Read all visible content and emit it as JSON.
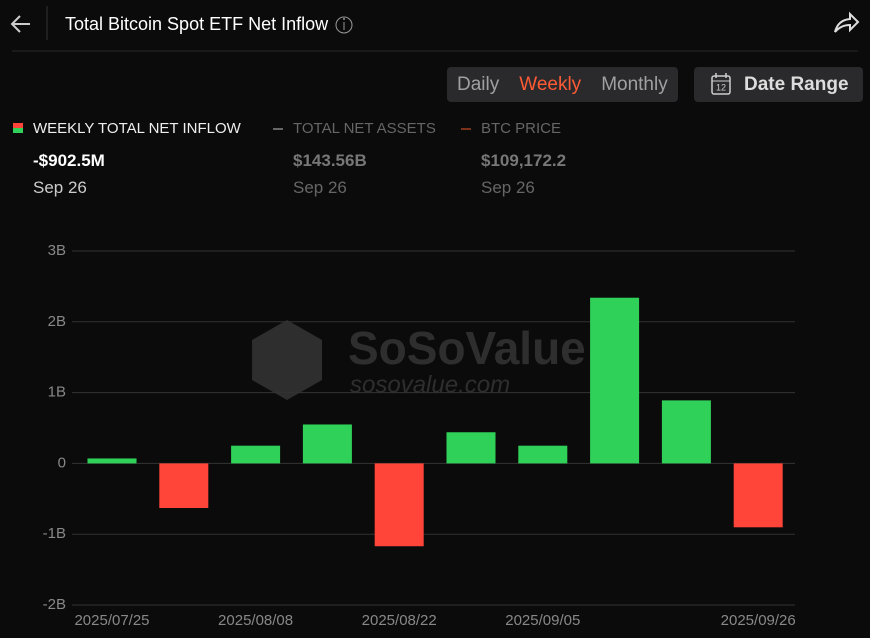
{
  "header": {
    "title": "Total Bitcoin Spot ETF Net Inflow"
  },
  "controls": {
    "tabs": [
      "Daily",
      "Weekly",
      "Monthly"
    ],
    "active_tab": 1,
    "date_range": "Date Range",
    "calendar_day": "12"
  },
  "legend": [
    {
      "label": "WEEKLY TOTAL NET INFLOW",
      "value": "-$902.5M",
      "date": "Sep 26"
    },
    {
      "label": "TOTAL NET ASSETS",
      "value": "$143.56B",
      "date": "Sep 26"
    },
    {
      "label": "BTC PRICE",
      "value": "$109,172.2",
      "date": "Sep 26"
    }
  ],
  "watermark": {
    "brand": "SoSoValue",
    "site": "sosovalue.com"
  },
  "chart_data": {
    "type": "bar",
    "categories": [
      "2025/07/25",
      null,
      "2025/08/08",
      null,
      "2025/08/22",
      null,
      "2025/09/05",
      null,
      null,
      "2025/09/26"
    ],
    "values": [
      0.07,
      -0.63,
      0.25,
      0.55,
      -1.17,
      0.44,
      0.25,
      2.34,
      0.89,
      -0.9025
    ],
    "positive_color": "#30d158",
    "negative_color": "#ff453a",
    "ylim": [
      -2,
      3
    ],
    "yticks": [
      {
        "value": -2,
        "label": "-2B"
      },
      {
        "value": -1,
        "label": "-1B"
      },
      0,
      {
        "value": 1,
        "label": "1B"
      },
      {
        "value": 2,
        "label": "2B"
      },
      {
        "value": 3,
        "label": "3B"
      }
    ],
    "grid": true
  }
}
